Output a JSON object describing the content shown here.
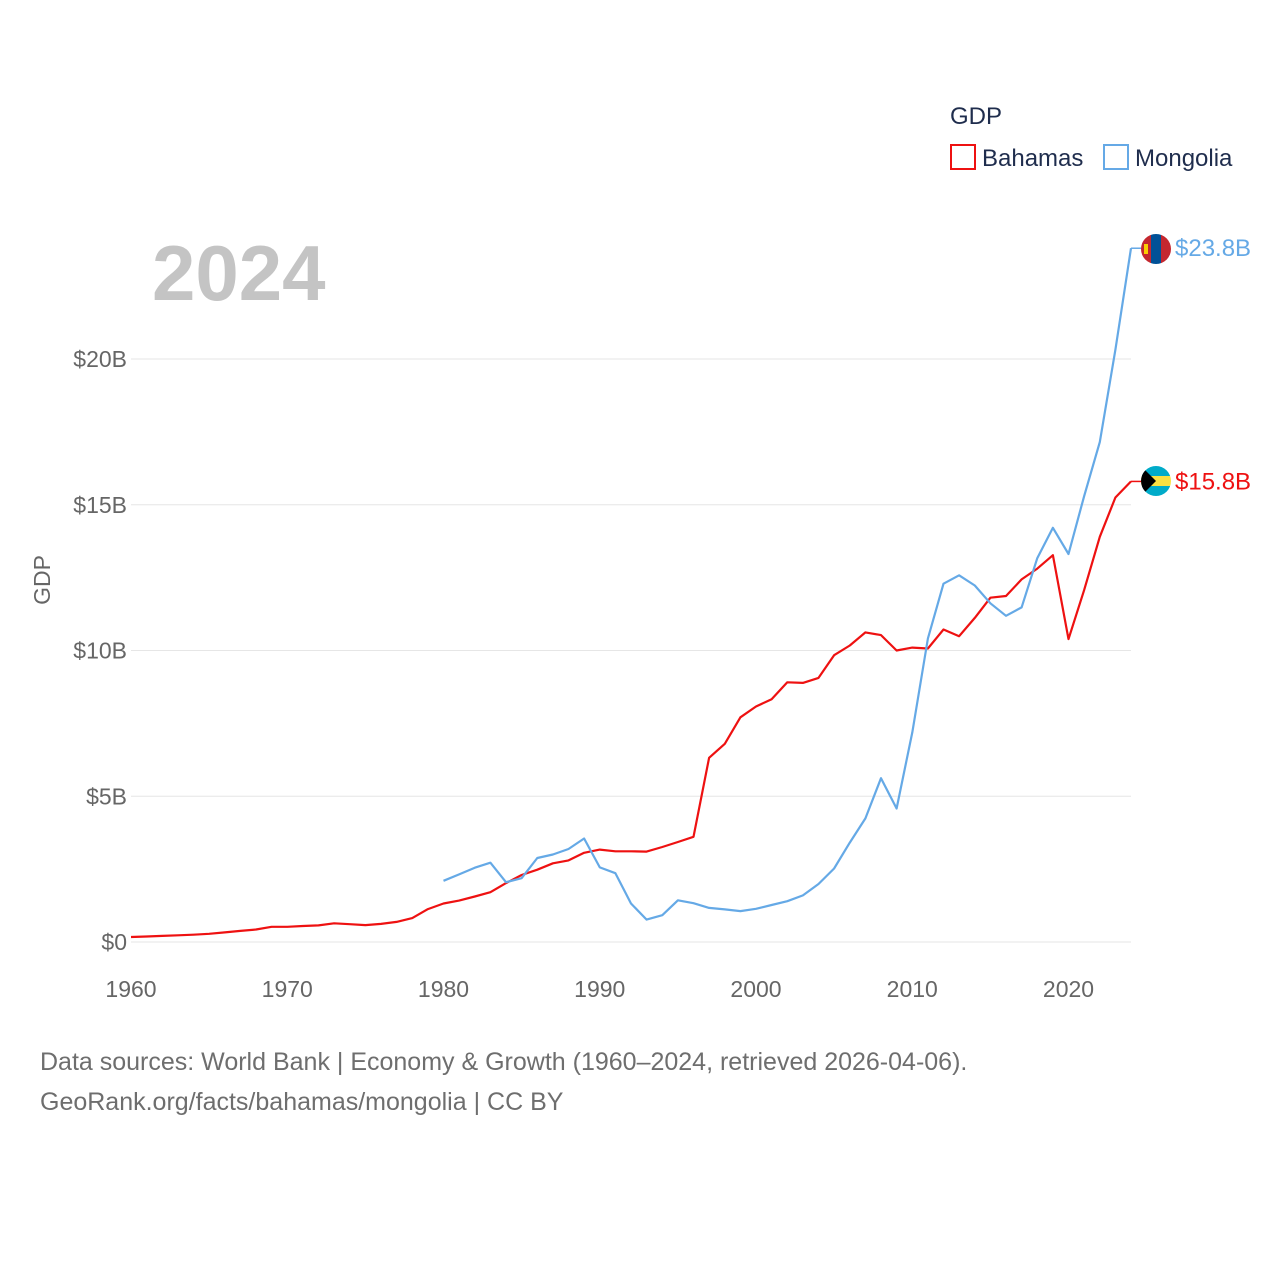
{
  "chart_data": {
    "type": "line",
    "year_label": "2024",
    "ylabel": "GDP",
    "xlabel": "",
    "xlim": [
      1960,
      2024
    ],
    "ylim": [
      0,
      23.8
    ],
    "y_ticks": [
      {
        "value": 0,
        "label": "$0"
      },
      {
        "value": 5,
        "label": "$5B"
      },
      {
        "value": 10,
        "label": "$10B"
      },
      {
        "value": 15,
        "label": "$15B"
      },
      {
        "value": 20,
        "label": "$20B"
      }
    ],
    "x_ticks": [
      1960,
      1970,
      1980,
      1990,
      2000,
      2010,
      2020
    ],
    "legend": {
      "title": "GDP",
      "position": "top-right"
    },
    "series": [
      {
        "name": "Bahamas",
        "color": "#ee1111",
        "end_label": "$15.8B",
        "flag": "bahamas-flag-icon",
        "points": [
          [
            1960,
            0.17
          ],
          [
            1961,
            0.19
          ],
          [
            1962,
            0.21
          ],
          [
            1963,
            0.23
          ],
          [
            1964,
            0.25
          ],
          [
            1965,
            0.28
          ],
          [
            1966,
            0.33
          ],
          [
            1967,
            0.38
          ],
          [
            1968,
            0.43
          ],
          [
            1969,
            0.52
          ],
          [
            1970,
            0.52
          ],
          [
            1971,
            0.55
          ],
          [
            1972,
            0.57
          ],
          [
            1973,
            0.64
          ],
          [
            1974,
            0.61
          ],
          [
            1975,
            0.58
          ],
          [
            1976,
            0.62
          ],
          [
            1977,
            0.69
          ],
          [
            1978,
            0.82
          ],
          [
            1979,
            1.13
          ],
          [
            1980,
            1.32
          ],
          [
            1981,
            1.42
          ],
          [
            1982,
            1.56
          ],
          [
            1983,
            1.71
          ],
          [
            1984,
            2.02
          ],
          [
            1985,
            2.3
          ],
          [
            1986,
            2.48
          ],
          [
            1987,
            2.7
          ],
          [
            1988,
            2.8
          ],
          [
            1989,
            3.06
          ],
          [
            1990,
            3.17
          ],
          [
            1991,
            3.11
          ],
          [
            1992,
            3.11
          ],
          [
            1993,
            3.1
          ],
          [
            1994,
            3.26
          ],
          [
            1995,
            3.43
          ],
          [
            1996,
            3.61
          ],
          [
            1997,
            6.32
          ],
          [
            1998,
            6.8
          ],
          [
            1999,
            7.71
          ],
          [
            2000,
            8.08
          ],
          [
            2001,
            8.33
          ],
          [
            2002,
            8.91
          ],
          [
            2003,
            8.89
          ],
          [
            2004,
            9.06
          ],
          [
            2005,
            9.84
          ],
          [
            2006,
            10.17
          ],
          [
            2007,
            10.62
          ],
          [
            2008,
            10.53
          ],
          [
            2009,
            10.0
          ],
          [
            2010,
            10.1
          ],
          [
            2011,
            10.07
          ],
          [
            2012,
            10.72
          ],
          [
            2013,
            10.49
          ],
          [
            2014,
            11.12
          ],
          [
            2015,
            11.81
          ],
          [
            2016,
            11.87
          ],
          [
            2017,
            12.44
          ],
          [
            2018,
            12.81
          ],
          [
            2019,
            13.27
          ],
          [
            2020,
            10.39
          ],
          [
            2021,
            12.07
          ],
          [
            2022,
            13.9
          ],
          [
            2023,
            15.25
          ],
          [
            2024,
            15.8
          ]
        ]
      },
      {
        "name": "Mongolia",
        "color": "#65a9e6",
        "end_label": "$23.8B",
        "flag": "mongolia-flag-icon",
        "points": [
          [
            1980,
            2.1
          ],
          [
            1981,
            2.32
          ],
          [
            1982,
            2.55
          ],
          [
            1983,
            2.72
          ],
          [
            1984,
            2.05
          ],
          [
            1985,
            2.19
          ],
          [
            1986,
            2.88
          ],
          [
            1987,
            3.0
          ],
          [
            1988,
            3.19
          ],
          [
            1989,
            3.55
          ],
          [
            1990,
            2.56
          ],
          [
            1991,
            2.36
          ],
          [
            1992,
            1.32
          ],
          [
            1993,
            0.77
          ],
          [
            1994,
            0.92
          ],
          [
            1995,
            1.43
          ],
          [
            1996,
            1.33
          ],
          [
            1997,
            1.17
          ],
          [
            1998,
            1.12
          ],
          [
            1999,
            1.06
          ],
          [
            2000,
            1.14
          ],
          [
            2001,
            1.27
          ],
          [
            2002,
            1.4
          ],
          [
            2003,
            1.6
          ],
          [
            2004,
            1.99
          ],
          [
            2005,
            2.52
          ],
          [
            2006,
            3.41
          ],
          [
            2007,
            4.24
          ],
          [
            2008,
            5.62
          ],
          [
            2009,
            4.58
          ],
          [
            2010,
            7.19
          ],
          [
            2011,
            10.41
          ],
          [
            2012,
            12.29
          ],
          [
            2013,
            12.58
          ],
          [
            2014,
            12.23
          ],
          [
            2015,
            11.62
          ],
          [
            2016,
            11.19
          ],
          [
            2017,
            11.48
          ],
          [
            2018,
            13.17
          ],
          [
            2019,
            14.21
          ],
          [
            2020,
            13.31
          ],
          [
            2021,
            15.29
          ],
          [
            2022,
            17.15
          ],
          [
            2023,
            20.32
          ],
          [
            2024,
            23.8
          ]
        ]
      }
    ]
  },
  "source": {
    "line1": "Data sources: World Bank | Economy & Growth (1960–2024, retrieved 2026-04-06).",
    "line2": "GeoRank.org/facts/bahamas/mongolia | CC BY"
  }
}
